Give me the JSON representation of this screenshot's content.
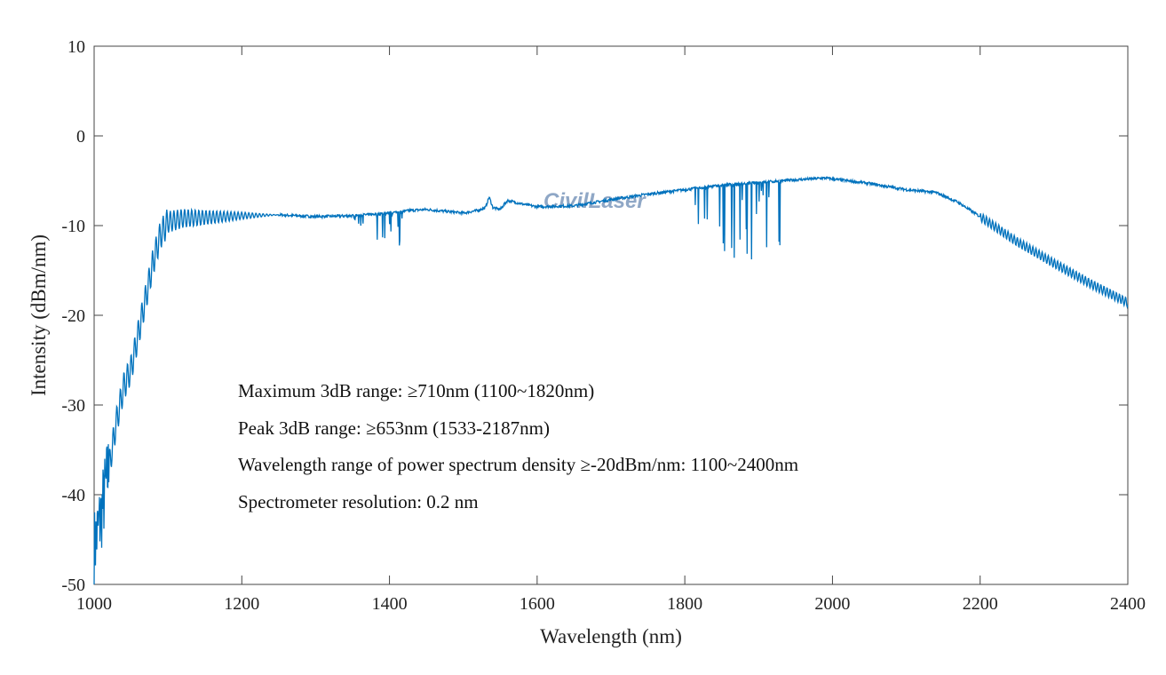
{
  "chart_data": {
    "type": "line",
    "title": "",
    "xlabel": "Wavelength  (nm)",
    "ylabel": "Intensity  (dBm/nm)",
    "xlim": [
      1000,
      2400
    ],
    "ylim": [
      -50,
      10
    ],
    "xticks": [
      1000,
      1200,
      1400,
      1600,
      1800,
      2000,
      2200,
      2400
    ],
    "yticks": [
      10,
      0,
      -10,
      -20,
      -30,
      -40,
      -50
    ],
    "grid": false,
    "line_color": "#0072bd",
    "series": [
      {
        "x": [
          1000,
          1010,
          1020,
          1030,
          1040,
          1050,
          1060,
          1070,
          1080,
          1090,
          1100,
          1120,
          1150,
          1200,
          1250,
          1300,
          1350,
          1400,
          1430,
          1450,
          1500,
          1520,
          1530,
          1535,
          1540,
          1550,
          1560,
          1580,
          1600,
          1650,
          1700,
          1750,
          1800,
          1850,
          1900,
          1950,
          1990,
          2000,
          2050,
          2100,
          2140,
          2170,
          2200,
          2250,
          2300,
          2350,
          2400
        ],
        "y": [
          -46,
          -42,
          -37,
          -32,
          -28,
          -26,
          -22,
          -18,
          -14,
          -11,
          -9.6,
          -9.2,
          -9.1,
          -8.9,
          -8.8,
          -9.0,
          -8.9,
          -8.6,
          -8.3,
          -8.2,
          -8.6,
          -8.3,
          -8.0,
          -6.8,
          -8.0,
          -8.2,
          -7.2,
          -7.6,
          -7.9,
          -7.8,
          -7.1,
          -6.5,
          -6.0,
          -5.5,
          -5.2,
          -4.9,
          -4.7,
          -4.8,
          -5.3,
          -6.0,
          -6.3,
          -7.4,
          -9.0,
          -11.8,
          -14.2,
          -16.5,
          -18.6
        ]
      }
    ],
    "absorption_bands": [
      {
        "from": 1350,
        "to": 1420,
        "min": -12.8
      },
      {
        "from": 1810,
        "to": 1930,
        "min": -13.8
      }
    ],
    "annotations": [
      "Maximum 3dB range: ≥710nm (1100~1820nm)",
      "Peak 3dB range: ≥653nm (1533-2187nm)",
      "Wavelength range of power spectrum density ≥-20dBm/nm: 1100~2400nm",
      "Spectrometer resolution: 0.2 nm"
    ],
    "watermark": "CivilLaser"
  }
}
